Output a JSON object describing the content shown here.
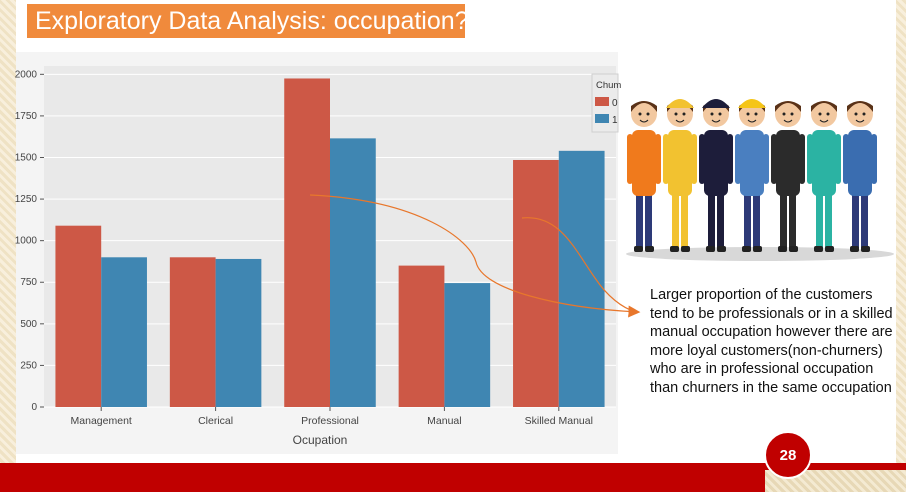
{
  "slide": {
    "title": "Exploratory Data Analysis: occupation?",
    "callout": "Larger proportion of the customers tend to be professionals or in a skilled manual occupation however there are more loyal customers(non-churners) who are in professional occupation than churners in the same occupation",
    "page_number": "28"
  },
  "colors": {
    "title_bg": "#f08a3c",
    "series_0": "#cd5846",
    "series_1": "#3f86b2",
    "plot_bg": "#e9e9e9",
    "footer": "#c00000",
    "arrow": "#e8772c"
  },
  "illustration": {
    "icon": "workers-group-illustration"
  },
  "chart_data": {
    "type": "bar",
    "xlabel": "Ocupation",
    "ylabel": "",
    "categories": [
      "Management",
      "Clerical",
      "Professional",
      "Manual",
      "Skilled Manual"
    ],
    "legend_title": "Chum",
    "legend_position": "top-right",
    "grid": true,
    "ylim": [
      0,
      2050
    ],
    "yticks": [
      0,
      250,
      500,
      750,
      1000,
      1250,
      1500,
      1750,
      2000
    ],
    "series": [
      {
        "name": "0",
        "values": [
          1090,
          900,
          1975,
          850,
          1485
        ]
      },
      {
        "name": "1",
        "values": [
          900,
          890,
          1615,
          745,
          1540
        ]
      }
    ]
  }
}
